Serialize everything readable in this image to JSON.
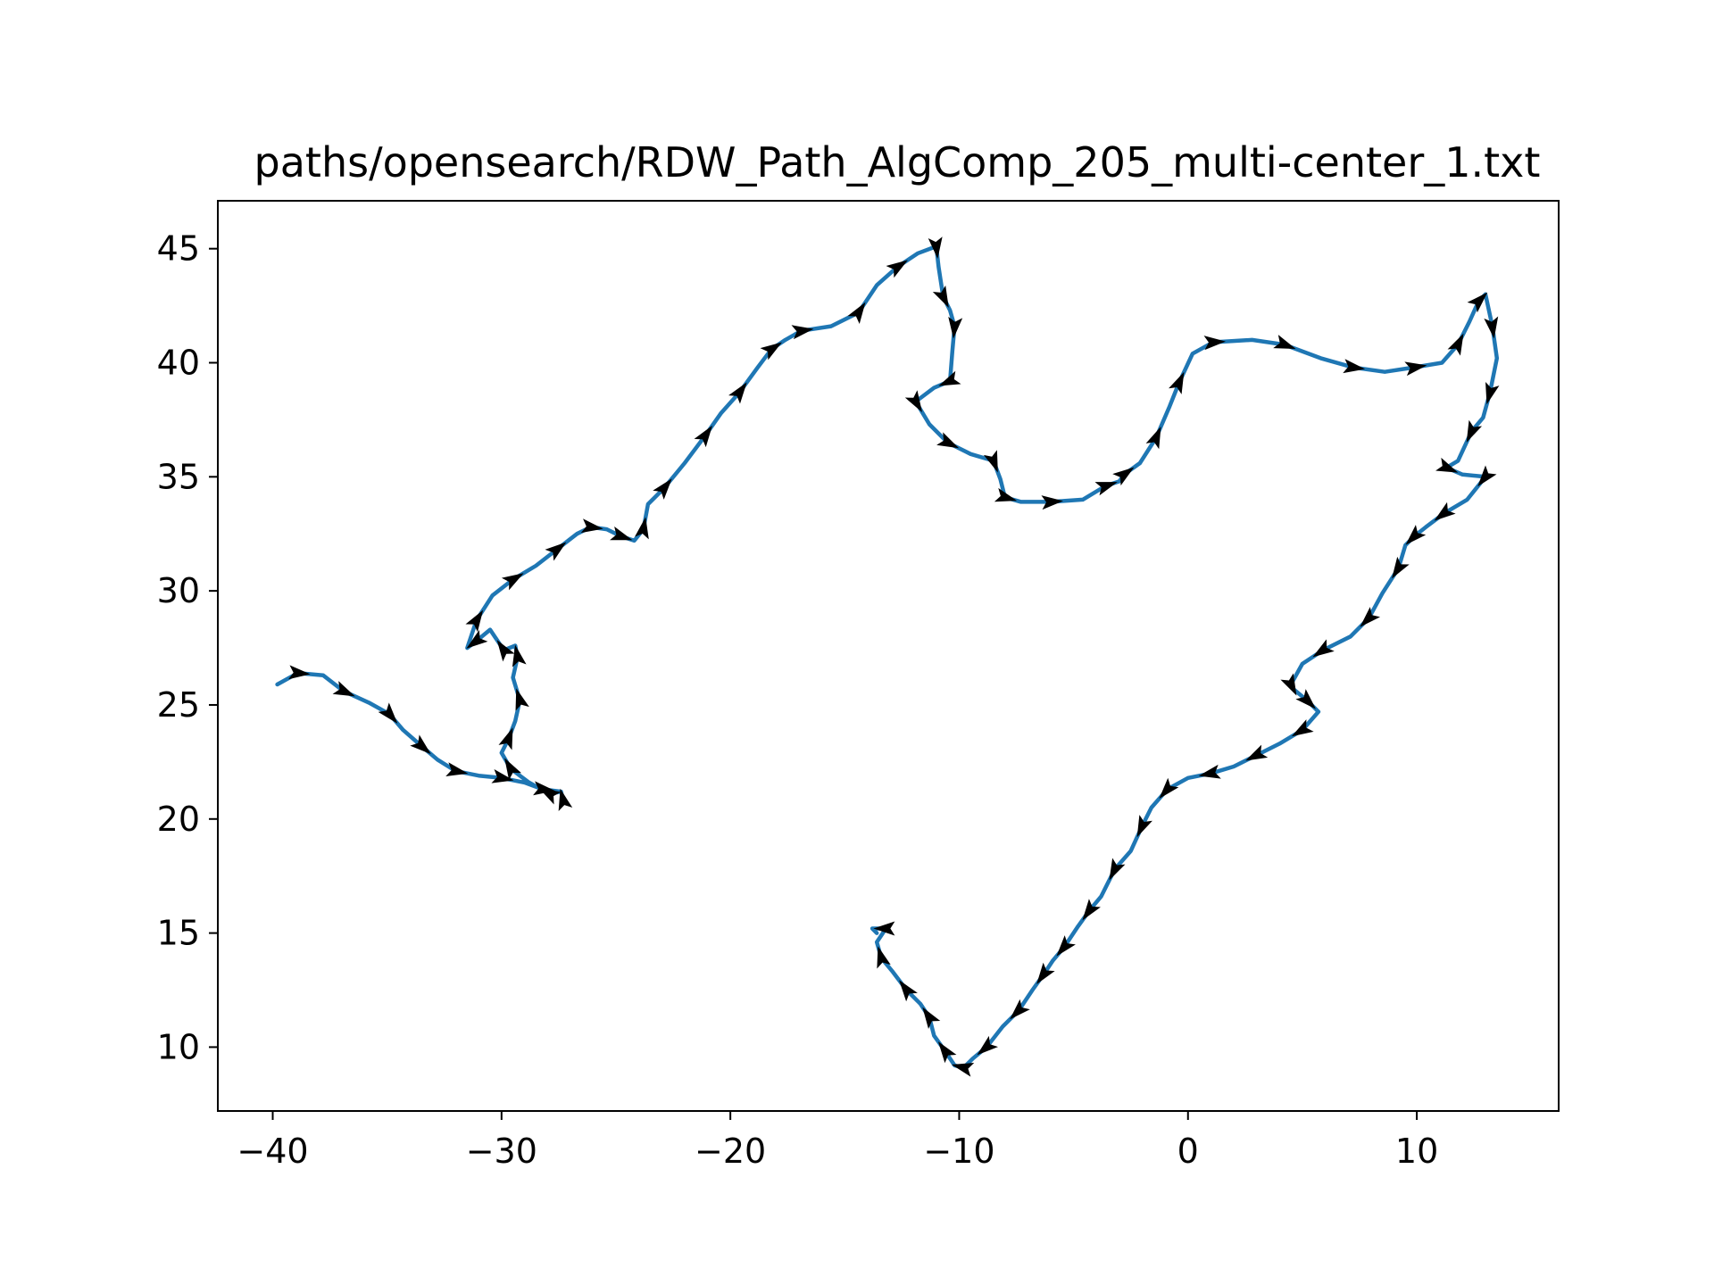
{
  "chart_data": {
    "type": "line",
    "title": "paths/opensearch/RDW_Path_AlgComp_205_multi-center_1.txt",
    "xlabel": "",
    "ylabel": "",
    "xlim": [
      -42.4,
      16.2
    ],
    "ylim": [
      7.2,
      47.1
    ],
    "xticks": [
      -40,
      -30,
      -20,
      -10,
      0,
      10
    ],
    "xtick_labels": [
      "−40",
      "−30",
      "−20",
      "−10",
      "0",
      "10"
    ],
    "yticks": [
      10,
      15,
      20,
      25,
      30,
      35,
      40,
      45
    ],
    "ytick_labels": [
      "10",
      "15",
      "20",
      "25",
      "30",
      "35",
      "40",
      "45"
    ],
    "grid": false,
    "legend": "none",
    "line_color": "#1f77b4",
    "arrow_color": "#000000",
    "series": [
      {
        "x": [
          -39.8,
          -38.9,
          -37.8,
          -36.9,
          -35.8,
          -34.9,
          -34.3,
          -33.5,
          -32.8,
          -32.0,
          -31.0,
          -30.0,
          -29.0,
          -28.2,
          -27.4,
          -27.3,
          -27.4,
          -27.9,
          -28.8,
          -29.6,
          -30.0,
          -29.7,
          -29.4,
          -29.2,
          -29.5,
          -29.3,
          -29.4,
          -29.9,
          -30.5,
          -31.1,
          -31.5,
          -31.1,
          -30.4,
          -29.5,
          -28.5,
          -27.6,
          -26.7,
          -26.1,
          -25.4,
          -24.8,
          -24.2,
          -23.8,
          -23.6,
          -22.9,
          -22.0,
          -21.1,
          -20.4,
          -19.6,
          -18.8,
          -18.2,
          -17.6,
          -16.9,
          -15.6,
          -14.4,
          -13.6,
          -12.7,
          -11.8,
          -11.0,
          -10.9,
          -10.7,
          -10.4,
          -10.2,
          -10.3,
          -10.4,
          -11.1,
          -11.9,
          -11.3,
          -10.5,
          -9.5,
          -8.5,
          -8.2,
          -8.0,
          -7.3,
          -6.0,
          -4.6,
          -3.6,
          -3.0,
          -2.8,
          -2.1,
          -1.4,
          -0.8,
          -0.4,
          0.2,
          1.1,
          2.8,
          4.2,
          5.8,
          7.2,
          8.6,
          9.9,
          11.1,
          11.8,
          12.3,
          12.7,
          13.0,
          13.3,
          13.5,
          13.2,
          12.9,
          12.4,
          11.8,
          11.3,
          12.0,
          13.0,
          12.2,
          11.2,
          10.4,
          9.9,
          9.5,
          9.2,
          8.5,
          7.9,
          7.1,
          5.9,
          5.0,
          4.5,
          4.6,
          5.2,
          5.7,
          5.0,
          4.0,
          3.0,
          2.0,
          1.0,
          0.0,
          -0.9,
          -1.6,
          -2.0,
          -2.5,
          -3.2,
          -3.8,
          -4.3,
          -4.8,
          -5.4,
          -5.9,
          -6.3,
          -6.8,
          -7.4,
          -8.1,
          -8.8,
          -9.4,
          -9.8,
          -10.2,
          -10.6,
          -11.1,
          -11.3,
          -11.7,
          -12.3,
          -12.9,
          -13.4,
          -13.6,
          -13.2,
          -13.8,
          -13.6
        ]
      }
    ],
    "y": [
      25.9,
      26.4,
      26.3,
      25.6,
      25.1,
      24.6,
      23.9,
      23.2,
      22.6,
      22.1,
      21.9,
      21.8,
      21.6,
      21.3,
      21.2,
      20.8,
      21.2,
      21.1,
      21.6,
      22.2,
      22.9,
      23.5,
      24.3,
      25.2,
      26.2,
      27.1,
      27.6,
      27.4,
      28.3,
      27.8,
      27.5,
      28.7,
      29.8,
      30.5,
      31.1,
      31.8,
      32.5,
      32.8,
      32.7,
      32.4,
      32.2,
      32.7,
      33.8,
      34.5,
      35.6,
      36.8,
      37.8,
      38.7,
      39.8,
      40.6,
      41.0,
      41.4,
      41.6,
      42.2,
      43.4,
      44.2,
      44.8,
      45.1,
      44.2,
      42.9,
      42.3,
      41.6,
      40.5,
      39.2,
      38.9,
      38.3,
      37.3,
      36.5,
      36.0,
      35.7,
      34.9,
      34.1,
      33.9,
      33.9,
      34.0,
      34.6,
      34.8,
      35.1,
      35.6,
      36.7,
      38.1,
      39.1,
      40.4,
      40.9,
      41.0,
      40.8,
      40.2,
      39.8,
      39.6,
      39.8,
      40.0,
      40.8,
      41.8,
      42.7,
      43.0,
      41.6,
      40.2,
      38.7,
      37.6,
      37.0,
      35.7,
      35.4,
      35.1,
      35.0,
      34.0,
      33.4,
      32.8,
      32.4,
      32.0,
      31.0,
      29.9,
      28.8,
      28.0,
      27.4,
      26.8,
      25.9,
      25.7,
      25.2,
      24.7,
      23.9,
      23.3,
      22.8,
      22.3,
      22.0,
      21.8,
      21.3,
      20.5,
      19.7,
      18.6,
      17.8,
      16.6,
      16.0,
      15.3,
      14.4,
      13.8,
      13.2,
      12.5,
      11.6,
      10.9,
      10.0,
      9.5,
      9.1,
      9.2,
      9.8,
      10.5,
      11.3,
      11.9,
      12.5,
      13.3,
      13.9,
      14.6,
      15.2,
      15.2,
      15.0
    ]
  }
}
